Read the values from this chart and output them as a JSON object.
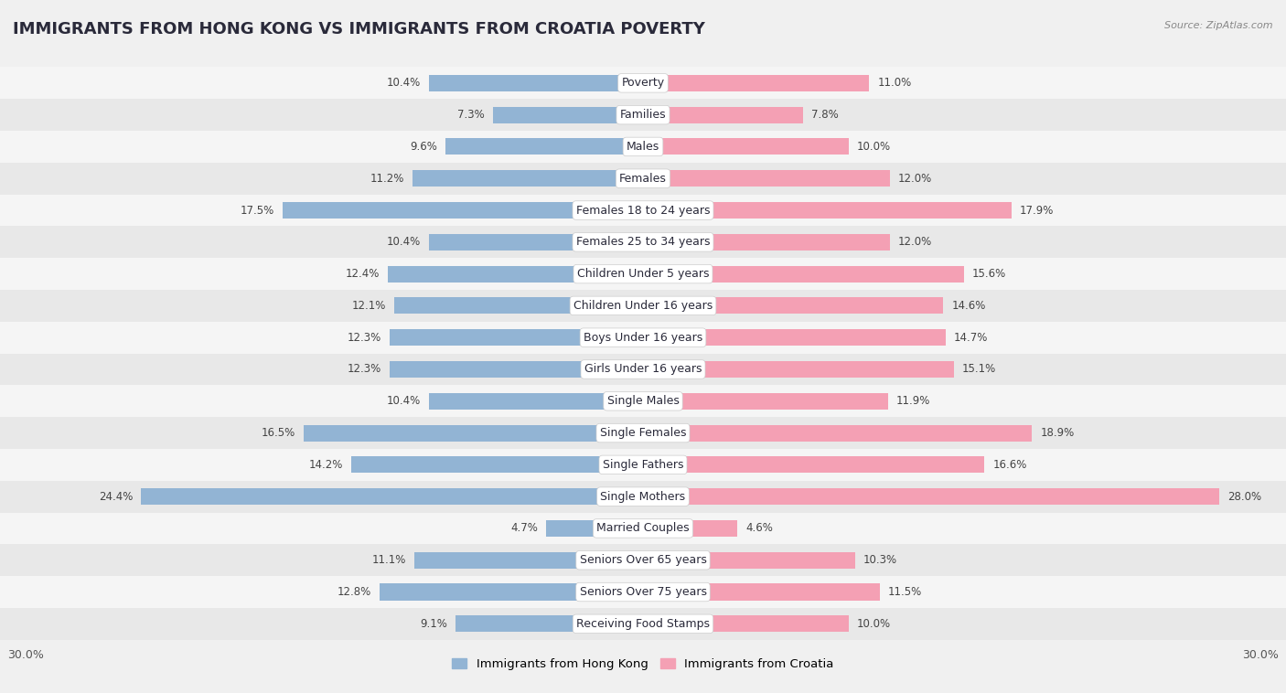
{
  "title": "IMMIGRANTS FROM HONG KONG VS IMMIGRANTS FROM CROATIA POVERTY",
  "source": "Source: ZipAtlas.com",
  "categories": [
    "Poverty",
    "Families",
    "Males",
    "Females",
    "Females 18 to 24 years",
    "Females 25 to 34 years",
    "Children Under 5 years",
    "Children Under 16 years",
    "Boys Under 16 years",
    "Girls Under 16 years",
    "Single Males",
    "Single Females",
    "Single Fathers",
    "Single Mothers",
    "Married Couples",
    "Seniors Over 65 years",
    "Seniors Over 75 years",
    "Receiving Food Stamps"
  ],
  "hong_kong_values": [
    10.4,
    7.3,
    9.6,
    11.2,
    17.5,
    10.4,
    12.4,
    12.1,
    12.3,
    12.3,
    10.4,
    16.5,
    14.2,
    24.4,
    4.7,
    11.1,
    12.8,
    9.1
  ],
  "croatia_values": [
    11.0,
    7.8,
    10.0,
    12.0,
    17.9,
    12.0,
    15.6,
    14.6,
    14.7,
    15.1,
    11.9,
    18.9,
    16.6,
    28.0,
    4.6,
    10.3,
    11.5,
    10.0
  ],
  "hong_kong_color": "#92b4d4",
  "croatia_color": "#f4a0b4",
  "row_color_even": "#f5f5f5",
  "row_color_odd": "#e8e8e8",
  "background_color": "#f0f0f0",
  "axis_limit": 30.0,
  "legend_label_hk": "Immigrants from Hong Kong",
  "legend_label_cr": "Immigrants from Croatia",
  "title_fontsize": 13,
  "label_fontsize": 9,
  "value_fontsize": 8.5
}
